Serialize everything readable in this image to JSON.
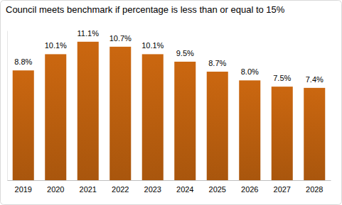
{
  "chart_data": {
    "type": "bar",
    "title": "Council meets benchmark if percentage is less than or equal to 15%",
    "categories": [
      "2019",
      "2020",
      "2021",
      "2022",
      "2023",
      "2024",
      "2025",
      "2026",
      "2027",
      "2028"
    ],
    "values": [
      8.8,
      10.1,
      11.1,
      10.7,
      10.1,
      9.5,
      8.7,
      8.0,
      7.5,
      7.4
    ],
    "value_labels": [
      "8.8%",
      "10.1%",
      "11.1%",
      "10.7%",
      "10.1%",
      "9.5%",
      "8.7%",
      "8.0%",
      "7.5%",
      "7.4%"
    ],
    "color": "#c0620f",
    "ylim": [
      0,
      12
    ],
    "grid": false,
    "data_labels": true,
    "tick_labels": "x"
  }
}
